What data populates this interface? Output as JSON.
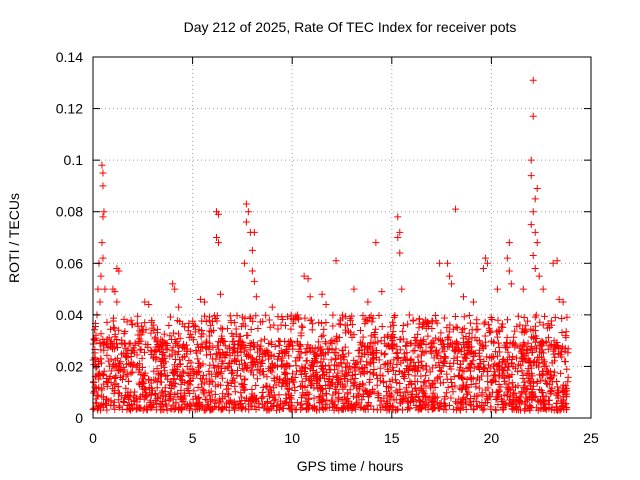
{
  "chart_data": {
    "type": "scatter",
    "title": "Day 212 of 2025, Rate Of TEC Index for receiver pots",
    "xlabel": "GPS time / hours",
    "ylabel": "ROTI / TECUs",
    "xlim": [
      0,
      25
    ],
    "ylim": [
      0,
      0.14
    ],
    "xticks": [
      "0",
      "5",
      "10",
      "15",
      "20",
      "25"
    ],
    "yticks": [
      "0",
      "0.02",
      "0.04",
      "0.06",
      "0.08",
      "0.1",
      "0.12",
      "0.14"
    ],
    "grid": true,
    "marker": "+",
    "series": [
      {
        "name": "ROTI",
        "color": "#ff0000",
        "points": [
          [
            0.15,
            0.03
          ],
          [
            0.2,
            0.04
          ],
          [
            0.25,
            0.05
          ],
          [
            0.3,
            0.06
          ],
          [
            0.35,
            0.045
          ],
          [
            0.45,
            0.098
          ],
          [
            0.5,
            0.095
          ],
          [
            0.5,
            0.09
          ],
          [
            0.55,
            0.08
          ],
          [
            0.5,
            0.078
          ],
          [
            0.45,
            0.068
          ],
          [
            0.5,
            0.062
          ],
          [
            0.4,
            0.055
          ],
          [
            0.6,
            0.05
          ],
          [
            1.0,
            0.05
          ],
          [
            1.1,
            0.049
          ],
          [
            1.2,
            0.058
          ],
          [
            1.3,
            0.057
          ],
          [
            1.2,
            0.045
          ],
          [
            2.6,
            0.045
          ],
          [
            2.8,
            0.044
          ],
          [
            4.0,
            0.052
          ],
          [
            4.1,
            0.05
          ],
          [
            4.3,
            0.043
          ],
          [
            5.4,
            0.046
          ],
          [
            5.6,
            0.045
          ],
          [
            6.2,
            0.08
          ],
          [
            6.3,
            0.079
          ],
          [
            6.2,
            0.07
          ],
          [
            6.3,
            0.068
          ],
          [
            6.4,
            0.048
          ],
          [
            7.7,
            0.083
          ],
          [
            7.8,
            0.08
          ],
          [
            7.7,
            0.076
          ],
          [
            7.9,
            0.072
          ],
          [
            8.1,
            0.072
          ],
          [
            8.0,
            0.065
          ],
          [
            7.6,
            0.06
          ],
          [
            8.0,
            0.057
          ],
          [
            8.1,
            0.053
          ],
          [
            8.2,
            0.047
          ],
          [
            9.0,
            0.043
          ],
          [
            10.6,
            0.055
          ],
          [
            10.8,
            0.054
          ],
          [
            10.9,
            0.047
          ],
          [
            11.5,
            0.048
          ],
          [
            11.7,
            0.044
          ],
          [
            12.2,
            0.061
          ],
          [
            13.1,
            0.05
          ],
          [
            13.8,
            0.045
          ],
          [
            14.2,
            0.068
          ],
          [
            14.5,
            0.049
          ],
          [
            15.3,
            0.078
          ],
          [
            15.4,
            0.072
          ],
          [
            15.3,
            0.07
          ],
          [
            15.4,
            0.064
          ],
          [
            15.5,
            0.05
          ],
          [
            17.4,
            0.06
          ],
          [
            17.8,
            0.06
          ],
          [
            17.9,
            0.055
          ],
          [
            18.0,
            0.052
          ],
          [
            18.2,
            0.081
          ],
          [
            18.6,
            0.047
          ],
          [
            19.1,
            0.045
          ],
          [
            19.6,
            0.058
          ],
          [
            19.7,
            0.062
          ],
          [
            19.8,
            0.06
          ],
          [
            20.3,
            0.05
          ],
          [
            20.9,
            0.068
          ],
          [
            20.8,
            0.062
          ],
          [
            20.9,
            0.057
          ],
          [
            21.0,
            0.052
          ],
          [
            21.6,
            0.05
          ],
          [
            22.0,
            0.1
          ],
          [
            22.1,
            0.117
          ],
          [
            22.1,
            0.131
          ],
          [
            22.0,
            0.094
          ],
          [
            22.2,
            0.085
          ],
          [
            22.3,
            0.089
          ],
          [
            22.1,
            0.08
          ],
          [
            22.0,
            0.075
          ],
          [
            22.2,
            0.072
          ],
          [
            22.3,
            0.068
          ],
          [
            22.1,
            0.063
          ],
          [
            22.2,
            0.058
          ],
          [
            22.4,
            0.055
          ],
          [
            22.6,
            0.05
          ],
          [
            23.1,
            0.06
          ],
          [
            23.3,
            0.061
          ],
          [
            23.4,
            0.046
          ],
          [
            23.6,
            0.045
          ]
        ],
        "baseline_band": {
          "x_range": [
            0,
            23.9
          ],
          "y_min": 0.003,
          "y_typical_max": 0.03,
          "y_upper_spikes": 0.04,
          "approx_count": 2600
        }
      }
    ]
  }
}
